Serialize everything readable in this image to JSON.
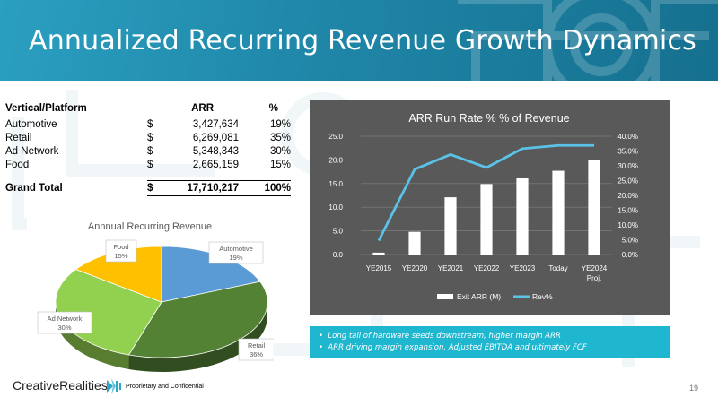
{
  "title": "Annualized Recurring Revenue Growth Dynamics",
  "table": {
    "headers": [
      "Vertical/Platform",
      "ARR",
      "%"
    ],
    "rows": [
      {
        "name": "Automotive",
        "cur": "$",
        "arr": "3,427,634",
        "pct": "19%"
      },
      {
        "name": "Retail",
        "cur": "$",
        "arr": "6,269,081",
        "pct": "35%"
      },
      {
        "name": "Ad Network",
        "cur": "$",
        "arr": "5,348,343",
        "pct": "30%"
      },
      {
        "name": "Food",
        "cur": "$",
        "arr": "2,665,159",
        "pct": "15%"
      }
    ],
    "total": {
      "name": "Grand Total",
      "cur": "$",
      "arr": "17,710,217",
      "pct": "100%"
    }
  },
  "chart_data": [
    {
      "type": "pie",
      "title": "Annnual Recurring Revenue",
      "categories": [
        "Automotive",
        "Retail",
        "Ad Network",
        "Food"
      ],
      "values": [
        19,
        36,
        30,
        15
      ],
      "labels": [
        "19%",
        "36%",
        "30%",
        "15%"
      ],
      "colors": [
        "#5b9bd5",
        "#548235",
        "#92d050",
        "#ffc000"
      ]
    },
    {
      "type": "bar",
      "title": "ARR Run Rate % % of Revenue",
      "categories": [
        "YE2015",
        "YE2020",
        "YE2021",
        "YE2022",
        "YE2023",
        "Today",
        "YE2024 Proj."
      ],
      "series": [
        {
          "name": "Exit ARR (M)",
          "type": "bar",
          "axis": "left",
          "values": [
            0.4,
            4.8,
            12.1,
            14.9,
            16.1,
            17.7,
            19.9
          ],
          "color": "#ffffff"
        },
        {
          "name": "Rev%",
          "type": "line",
          "axis": "right",
          "values": [
            4.7,
            28.8,
            33.8,
            29.4,
            35.8,
            36.9,
            36.9
          ],
          "color": "#5bc2e7"
        }
      ],
      "ylim": [
        0,
        25
      ],
      "y_ticks": [
        "0.0",
        "5.0",
        "10.0",
        "15.0",
        "20.0",
        "25.0"
      ],
      "y2lim": [
        0,
        40
      ],
      "y2_ticks": [
        "0.0%",
        "5.0%",
        "10.0%",
        "15.0%",
        "20.0%",
        "25.0%",
        "30.0%",
        "35.0%",
        "40.0%"
      ],
      "grid": true,
      "legend": "bottom"
    }
  ],
  "bullets": [
    "Long tail of hardware seeds downstream, higher margin ARR",
    "ARR driving margin expansion, Adjusted EBITDA and ultimately FCF"
  ],
  "footer": {
    "logo": "CreativeRealities",
    "proprietary": "Proprietary and Confidential",
    "page": "19"
  }
}
